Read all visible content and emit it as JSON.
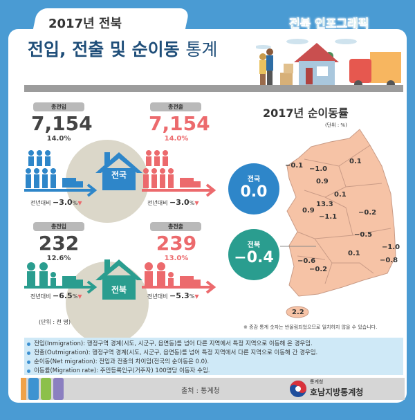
{
  "header": {
    "year_region": "2017년 전북",
    "title_bold": "전입, 전출 및 순이동",
    "title_light": "통계",
    "brand": "전북 인포그래픽"
  },
  "national": {
    "in_label": "총전입",
    "in_value": "7,154",
    "in_pct": "14.0%",
    "out_label": "총전출",
    "out_value": "7,154",
    "out_pct": "14.0%",
    "house_label": "전국",
    "in_yoy_label": "전년대비",
    "in_yoy": "−3.0",
    "out_yoy_label": "전년대비",
    "out_yoy": "−3.0",
    "pct_sign": "%"
  },
  "jeonbuk": {
    "in_label": "총전입",
    "in_value": "232",
    "in_pct": "12.6%",
    "out_label": "총전출",
    "out_value": "239",
    "out_pct": "13.0%",
    "house_label": "전북",
    "in_yoy_label": "전년대비",
    "in_yoy": "−6.5",
    "out_yoy_label": "전년대비",
    "out_yoy": "−5.3",
    "pct_sign": "%"
  },
  "unit_people": "(단위 : 천 명)",
  "map": {
    "title": "2017년 순이동률",
    "unit": "(단위 : %)",
    "national": {
      "label": "전국",
      "value": "0.0"
    },
    "jeonbuk": {
      "label": "전북",
      "value": "−0.4"
    },
    "regions": [
      "−0.1",
      "−1.0",
      "0.9",
      "0.1",
      "0.1",
      "13.3",
      "0.9",
      "−1.1",
      "−0.2",
      "−0.5",
      "−1.0",
      "0.1",
      "−0.8",
      "−0.6",
      "−0.2",
      "2.2"
    ],
    "note": "※ 증감 통계 숫자는 반올림되었으므로 일치하지 않을 수 있습니다."
  },
  "definitions": [
    "전입(Inmigration): 행정구역 경계(시도, 시군구, 읍면동)를 넘어 다른 지역에서 특정 지역으로 이동해 온 경우임.",
    "전출(Outmigration): 행정구역 경계(시도, 시군구, 읍면동)를 넘어 특정 지역에서 다른 지역으로 이동해 간 경우임.",
    "순이동(Net migration): 전입과 전출의 차이임(전국의 순이동은 0.0).",
    "이동률(Migration rate): 주민등록인구(거주자) 100명당 이동자 수임."
  ],
  "footer": {
    "source": "출처 : 통계청",
    "org_small": "통계청",
    "org_big": "호남지방통계청"
  },
  "colors": {
    "blue": "#2e86c9",
    "pink": "#ec6a6d",
    "teal": "#2a9d8f",
    "map_fill": "#f6c3a6"
  }
}
